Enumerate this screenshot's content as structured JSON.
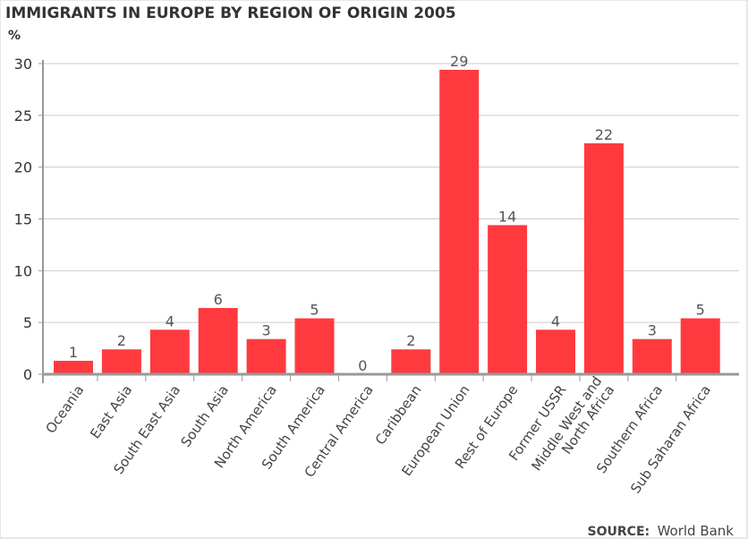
{
  "chart_data": {
    "type": "bar",
    "title": "IMMIGRANTS IN EUROPE BY REGION OF ORIGIN 2005",
    "ylabel": "%",
    "xlabel": "",
    "ylim": [
      0,
      30
    ],
    "yticks": [
      0,
      5,
      10,
      15,
      20,
      25,
      30
    ],
    "grid": true,
    "legend": "none",
    "bar_color": "#ff3a3f",
    "categories": [
      [
        "Oceania"
      ],
      [
        "East Asia"
      ],
      [
        "South East Asia"
      ],
      [
        "South Asia"
      ],
      [
        "North America"
      ],
      [
        "South America"
      ],
      [
        "Central America"
      ],
      [
        "Caribbean"
      ],
      [
        "European Union"
      ],
      [
        "Rest of Europe"
      ],
      [
        "Former USSR"
      ],
      [
        "Middle West and",
        "North Africa"
      ],
      [
        "Southern Africa"
      ],
      [
        "Sub Saharan Africa"
      ]
    ],
    "values": [
      1.3,
      2.4,
      4.3,
      6.4,
      3.4,
      5.4,
      0,
      2.4,
      29.4,
      14.4,
      4.3,
      22.3,
      3.4,
      5.4
    ],
    "data_labels": [
      "1",
      "2",
      "4",
      "6",
      "3",
      "5",
      "0",
      "2",
      "29",
      "14",
      "4",
      "22",
      "3",
      "5"
    ]
  },
  "source": {
    "label": "SOURCE:",
    "value": "World Bank"
  }
}
